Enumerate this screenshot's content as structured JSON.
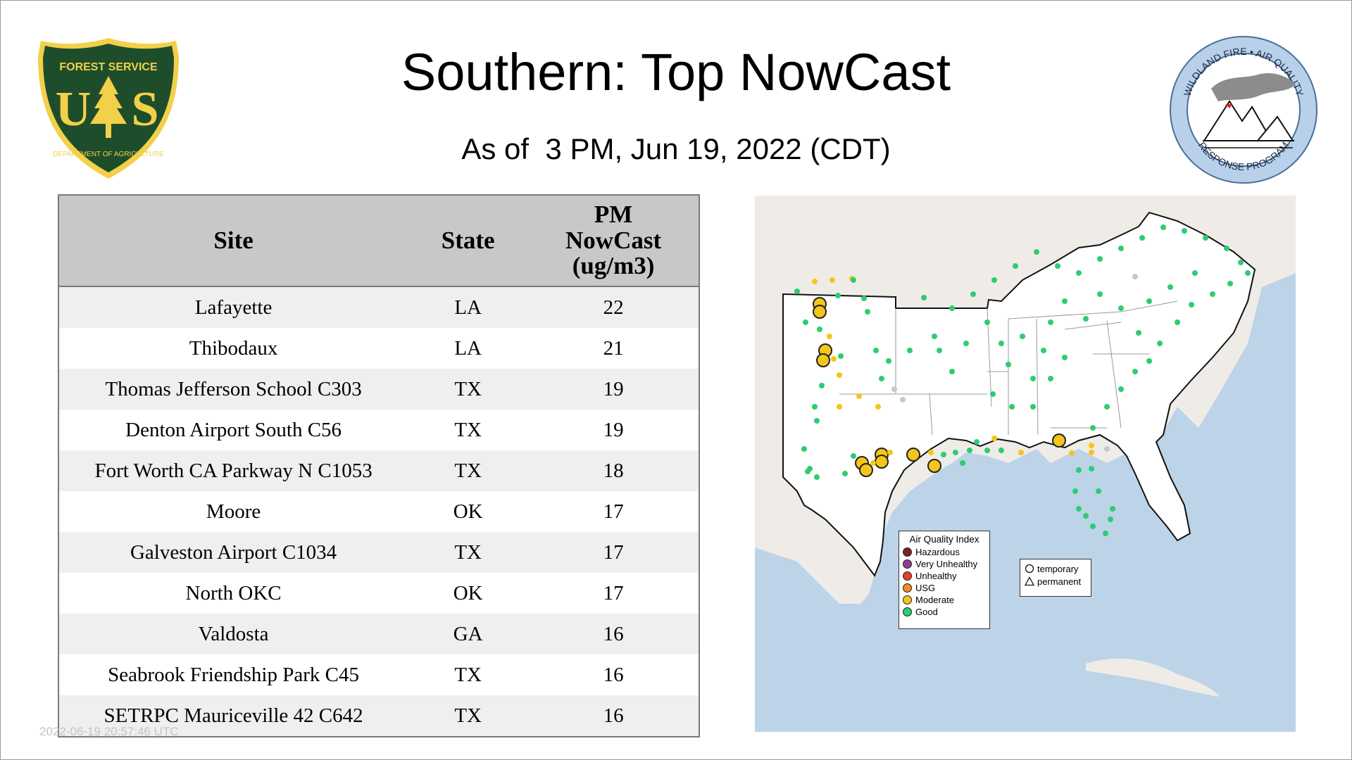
{
  "title": "Southern: Top NowCast",
  "subtitle": "As of  3 PM, Jun 19, 2022 (CDT)",
  "logo_left": {
    "name": "forest-service-shield",
    "top_text": "FOREST SERVICE",
    "letters": "US",
    "bottom_text": "DEPARTMENT OF AGRICULTURE",
    "colors": {
      "green": "#1e4d2b",
      "gold": "#f2d04a"
    }
  },
  "logo_right": {
    "name": "wildland-fire-air-quality-seal",
    "top_text": "WILDLAND FIRE • AIR QUALITY",
    "bottom_text": "RESPONSE PROGRAM",
    "colors": {
      "ring": "#b8d0ea",
      "smoke": "#8c8c8c"
    }
  },
  "table": {
    "headers": {
      "site": "Site",
      "state": "State",
      "pm1": "PM",
      "pm2": "NowCast",
      "pm3": "(ug/m3)"
    },
    "rows": [
      {
        "site": "Lafayette",
        "state": "LA",
        "value": "22"
      },
      {
        "site": "Thibodaux",
        "state": "LA",
        "value": "21"
      },
      {
        "site": "Thomas Jefferson School C303",
        "state": "TX",
        "value": "19"
      },
      {
        "site": "Denton Airport South C56",
        "state": "TX",
        "value": "19"
      },
      {
        "site": "Fort Worth CA Parkway N C1053",
        "state": "TX",
        "value": "18"
      },
      {
        "site": "Moore",
        "state": "OK",
        "value": "17"
      },
      {
        "site": "Galveston Airport C1034",
        "state": "TX",
        "value": "17"
      },
      {
        "site": "North OKC",
        "state": "OK",
        "value": "17"
      },
      {
        "site": "Valdosta",
        "state": "GA",
        "value": "16"
      },
      {
        "site": "Seabrook Friendship Park C45",
        "state": "TX",
        "value": "16"
      },
      {
        "site": "SETRPC Mauriceville 42 C642",
        "state": "TX",
        "value": "16"
      }
    ]
  },
  "legend": {
    "title": "Air Quality Index",
    "items": [
      {
        "label": "Hazardous",
        "color": "#7e2320"
      },
      {
        "label": "Very Unhealthy",
        "color": "#8f3f97"
      },
      {
        "label": "Unhealthy",
        "color": "#e8402f"
      },
      {
        "label": "USG",
        "color": "#f08a24"
      },
      {
        "label": "Moderate",
        "color": "#f5c518"
      },
      {
        "label": "Good",
        "color": "#2ecc71"
      }
    ]
  },
  "monitor_legend": {
    "temporary": "temporary",
    "permanent": "permanent"
  },
  "map_colors": {
    "water": "#bdd3e8",
    "land": "#efece8",
    "region": "#ffffff",
    "border": "#111111"
  },
  "timestamp": "2022-06-19 20:57:46 UTC"
}
